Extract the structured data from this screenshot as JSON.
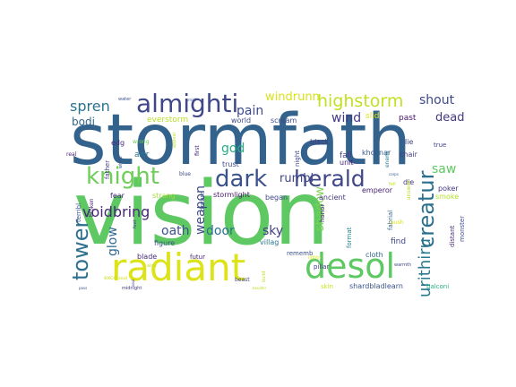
{
  "chart_data": {
    "type": "wordcloud",
    "words": [
      {
        "text": "stormfath",
        "weight": 100,
        "color": "#33638d",
        "vertical": false
      },
      {
        "text": "vision",
        "weight": 98,
        "color": "#5ec962",
        "vertical": false
      },
      {
        "text": "radiant",
        "weight": 62,
        "color": "#dce319",
        "vertical": false
      },
      {
        "text": "desol",
        "weight": 55,
        "color": "#5ec962",
        "vertical": false
      },
      {
        "text": "almighti",
        "weight": 38,
        "color": "#3f4788",
        "vertical": false
      },
      {
        "text": "knight",
        "weight": 34,
        "color": "#6ece58",
        "vertical": false
      },
      {
        "text": "dark",
        "weight": 33,
        "color": "#3b528b",
        "vertical": false
      },
      {
        "text": "herald",
        "weight": 33,
        "color": "#3f4788",
        "vertical": false
      },
      {
        "text": "creatur",
        "weight": 30,
        "color": "#2d708e",
        "vertical": true
      },
      {
        "text": "tower",
        "weight": 30,
        "color": "#2d708e",
        "vertical": true
      },
      {
        "text": "highstorm",
        "weight": 24,
        "color": "#c2df23",
        "vertical": false
      },
      {
        "text": "urithiru",
        "weight": 22,
        "color": "#2a788e",
        "vertical": true
      },
      {
        "text": "voidbring",
        "weight": 20,
        "color": "#482878",
        "vertical": false
      },
      {
        "text": "spren",
        "weight": 19,
        "color": "#2c728e",
        "vertical": false
      },
      {
        "text": "weapon",
        "weight": 18,
        "color": "#3e4989",
        "vertical": true
      },
      {
        "text": "glow",
        "weight": 18,
        "color": "#31688e",
        "vertical": true
      },
      {
        "text": "shout",
        "weight": 17,
        "color": "#3e4989",
        "vertical": false
      },
      {
        "text": "wind",
        "weight": 17,
        "color": "#443983",
        "vertical": false
      },
      {
        "text": "sky",
        "weight": 17,
        "color": "#433e85",
        "vertical": false
      },
      {
        "text": "door",
        "weight": 16,
        "color": "#2c728e",
        "vertical": false
      },
      {
        "text": "oath",
        "weight": 16,
        "color": "#3b528b",
        "vertical": false
      },
      {
        "text": "god",
        "weight": 16,
        "color": "#27ad81",
        "vertical": false
      },
      {
        "text": "pain",
        "weight": 16,
        "color": "#3e4989",
        "vertical": false
      },
      {
        "text": "shadow",
        "weight": 16,
        "color": "#7ad151",
        "vertical": true
      },
      {
        "text": "windrunn",
        "weight": 15,
        "color": "#d8e219",
        "vertical": false
      },
      {
        "text": "saw",
        "weight": 15,
        "color": "#5ec962",
        "vertical": false
      },
      {
        "text": "rumbl",
        "weight": 14,
        "color": "#404688",
        "vertical": false
      },
      {
        "text": "dead",
        "weight": 14,
        "color": "#453781",
        "vertical": false
      },
      {
        "text": "bodi",
        "weight": 13,
        "color": "#31688e",
        "vertical": false
      },
      {
        "text": "fall",
        "weight": 10,
        "color": "#443a83",
        "vertical": false
      },
      {
        "text": "slid",
        "weight": 10,
        "color": "#dde318",
        "vertical": false
      },
      {
        "text": "past",
        "weight": 10,
        "color": "#471164",
        "vertical": false
      },
      {
        "text": "everstorm",
        "weight": 9,
        "color": "#b8de29",
        "vertical": false
      },
      {
        "text": "world",
        "weight": 9,
        "color": "#3e4a89",
        "vertical": false
      },
      {
        "text": "scream",
        "weight": 9,
        "color": "#3d4d8a",
        "vertical": false
      },
      {
        "text": "kholinar",
        "weight": 9,
        "color": "#38598c",
        "vertical": false
      },
      {
        "text": "lie",
        "weight": 9,
        "color": "#3f4788",
        "vertical": false
      },
      {
        "text": "chair",
        "weight": 9,
        "color": "#433e85",
        "vertical": false
      },
      {
        "text": "black",
        "weight": 9,
        "color": "#453781",
        "vertical": false
      },
      {
        "text": "unit",
        "weight": 8,
        "color": "#482173",
        "vertical": false
      },
      {
        "text": "emperor",
        "weight": 9,
        "color": "#482173",
        "vertical": false
      },
      {
        "text": "poker",
        "weight": 9,
        "color": "#453581",
        "vertical": false
      },
      {
        "text": "smoke",
        "weight": 8,
        "color": "#b5de2b",
        "vertical": false
      },
      {
        "text": "azir",
        "weight": 9,
        "color": "#2d708e",
        "vertical": false
      },
      {
        "text": "edg",
        "weight": 8,
        "color": "#472d7b",
        "vertical": false
      },
      {
        "text": "fear",
        "weight": 8,
        "color": "#482878",
        "vertical": false
      },
      {
        "text": "strang",
        "weight": 9,
        "color": "#a5db36",
        "vertical": false
      },
      {
        "text": "stormlight",
        "weight": 8,
        "color": "#48186a",
        "vertical": false
      },
      {
        "text": "began",
        "weight": 9,
        "color": "#3e4989",
        "vertical": false
      },
      {
        "text": "ancient",
        "weight": 9,
        "color": "#453781",
        "vertical": false
      },
      {
        "text": "figure",
        "weight": 9,
        "color": "#3b528b",
        "vertical": false
      },
      {
        "text": "villag",
        "weight": 8,
        "color": "#2a788e",
        "vertical": false
      },
      {
        "text": "blade",
        "weight": 8,
        "color": "#472d7b",
        "vertical": false
      },
      {
        "text": "futur",
        "weight": 8,
        "color": "#482475",
        "vertical": false
      },
      {
        "text": "trust",
        "weight": 8,
        "color": "#3e4a89",
        "vertical": false
      },
      {
        "text": "cloth",
        "weight": 9,
        "color": "#31688e",
        "vertical": false
      },
      {
        "text": "rememb",
        "weight": 8,
        "color": "#3b528b",
        "vertical": false
      },
      {
        "text": "find",
        "weight": 9,
        "color": "#3f4788",
        "vertical": false
      },
      {
        "text": "pillar",
        "weight": 8,
        "color": "#453781",
        "vertical": false
      },
      {
        "text": "skin",
        "weight": 8,
        "color": "#cae11f",
        "vertical": false
      },
      {
        "text": "shardbladlearn",
        "weight": 8,
        "color": "#3b528b",
        "vertical": false
      },
      {
        "text": "balconi",
        "weight": 8,
        "color": "#29af7f",
        "vertical": false
      },
      {
        "text": "die",
        "weight": 8,
        "color": "#453781",
        "vertical": false
      },
      {
        "text": "true",
        "weight": 7,
        "color": "#404688",
        "vertical": false
      },
      {
        "text": "night",
        "weight": 7,
        "color": "#3e4989",
        "vertical": true
      },
      {
        "text": "honor",
        "weight": 7,
        "color": "#482475",
        "vertical": true
      },
      {
        "text": "enemi",
        "weight": 7,
        "color": "#2a788e",
        "vertical": true
      },
      {
        "text": "fabrial",
        "weight": 7,
        "color": "#32658e",
        "vertical": true
      },
      {
        "text": "format",
        "weight": 7,
        "color": "#26818e",
        "vertical": true
      },
      {
        "text": "answer",
        "weight": 6,
        "color": "#b8de29",
        "vertical": true
      },
      {
        "text": "monster",
        "weight": 7,
        "color": "#3b528b",
        "vertical": true
      },
      {
        "text": "distant",
        "weight": 7,
        "color": "#472d7b",
        "vertical": true
      },
      {
        "text": "terribl",
        "weight": 7,
        "color": "#3d4e8a",
        "vertical": true
      },
      {
        "text": "broken",
        "weight": 6,
        "color": "#482475",
        "vertical": true
      },
      {
        "text": "father",
        "weight": 7,
        "color": "#443983",
        "vertical": true
      },
      {
        "text": "dream",
        "weight": 7,
        "color": "#3b528b",
        "vertical": true
      },
      {
        "text": "first",
        "weight": 6,
        "color": "#482173",
        "vertical": true
      },
      {
        "text": "appear",
        "weight": 5,
        "color": "#bddf26",
        "vertical": true
      },
      {
        "text": "wrong",
        "weight": 6,
        "color": "#6ece58",
        "vertical": false
      },
      {
        "text": "real",
        "weight": 6,
        "color": "#482475",
        "vertical": false
      },
      {
        "text": "blue",
        "weight": 6,
        "color": "#3f4788",
        "vertical": false
      },
      {
        "text": "push",
        "weight": 6,
        "color": "#dde318",
        "vertical": false
      },
      {
        "text": "excel",
        "weight": 6,
        "color": "#cae11f",
        "vertical": false
      },
      {
        "text": "soul",
        "weight": 5,
        "color": "#dde318",
        "vertical": false
      },
      {
        "text": "alon",
        "weight": 5,
        "color": "#c2df23",
        "vertical": false
      },
      {
        "text": "beast",
        "weight": 6,
        "color": "#3f4788",
        "vertical": false
      },
      {
        "text": "lightn",
        "weight": 5,
        "color": "#dde318",
        "vertical": false
      },
      {
        "text": "midnight",
        "weight": 5,
        "color": "#453781",
        "vertical": false
      },
      {
        "text": "boulder",
        "weight": 4,
        "color": "#bddf26",
        "vertical": false
      },
      {
        "text": "warmth",
        "weight": 5,
        "color": "#3e4989",
        "vertical": false
      },
      {
        "text": "water",
        "weight": 5,
        "color": "#3b528b",
        "vertical": false
      },
      {
        "text": "small",
        "weight": 4,
        "color": "#3b528b",
        "vertical": false
      },
      {
        "text": "white",
        "weight": 5,
        "color": "#3b528b",
        "vertical": true
      },
      {
        "text": "feet",
        "weight": 5,
        "color": "#3e4989",
        "vertical": true
      },
      {
        "text": "build",
        "weight": 5,
        "color": "#bddf26",
        "vertical": true
      },
      {
        "text": "corps",
        "weight": 4,
        "color": "#38598c",
        "vertical": false
      },
      {
        "text": "fell",
        "weight": 5,
        "color": "#c2df23",
        "vertical": false
      },
      {
        "text": "pass",
        "weight": 4,
        "color": "#3b528b",
        "vertical": false
      },
      {
        "text": "soul",
        "weight": 4,
        "color": "#453781",
        "vertical": true
      }
    ]
  }
}
